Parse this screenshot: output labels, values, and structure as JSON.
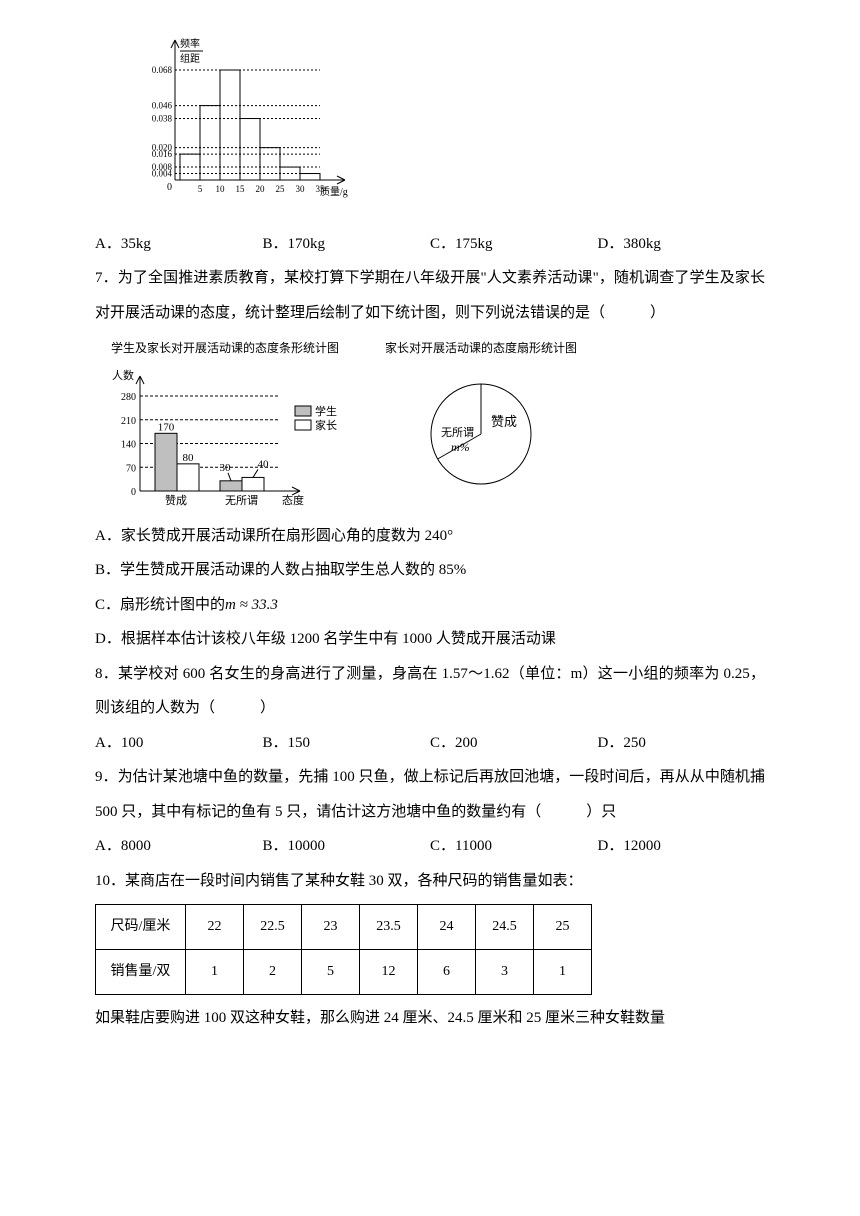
{
  "histogram": {
    "y_label": "频率",
    "y_sublabel": "组距",
    "x_label": "质量/g",
    "y_ticks": [
      "0.004",
      "0.008",
      "0.016",
      "0.020",
      "0.038",
      "0.046",
      "0.068"
    ],
    "y_tick_pos": [
      4,
      8,
      16,
      20,
      38,
      46,
      68
    ],
    "x_ticks": [
      "5",
      "10",
      "15",
      "20",
      "25",
      "30",
      "35"
    ],
    "bars": [
      16,
      46,
      68,
      38,
      20,
      8,
      4
    ],
    "axis_color": "#000000",
    "bar_fill": "#ffffff",
    "bar_stroke": "#000000"
  },
  "q6_options": {
    "a": "A．35kg",
    "b": "B．170kg",
    "c": "C．175kg",
    "d": "D．380kg"
  },
  "q7": {
    "text": "7．为了全国推进素质教育，某校打算下学期在八年级开展\"人文素养活动课\"，随机调查了学生及家长对开展活动课的态度，统计整理后绘制了如下统计图，则下列说法错误的是（　　　）",
    "bar_title": "学生及家长对开展活动课的态度条形统计图",
    "pie_title": "家长对开展活动课的态度扇形统计图",
    "bar": {
      "y_label": "人数",
      "y_ticks": [
        "0",
        "70",
        "140",
        "210",
        "280"
      ],
      "x_label": "态度",
      "categories": [
        "赞成",
        "无所谓"
      ],
      "series": [
        {
          "label": "学生",
          "color": "#bfbfbf",
          "values": [
            170,
            30
          ]
        },
        {
          "label": "家长",
          "color": "#ffffff",
          "values": [
            80,
            40
          ]
        }
      ],
      "bar_labels": [
        "170",
        "80",
        "30",
        "40"
      ]
    },
    "pie": {
      "slices": [
        {
          "label": "赞成",
          "angle": 240
        },
        {
          "label": "无所谓",
          "sublabel": "m%",
          "angle": 120
        }
      ],
      "stroke": "#000000",
      "fill": "#ffffff"
    },
    "opts": {
      "a": "A．家长赞成开展活动课所在扇形圆心角的度数为 240°",
      "b": "B．学生赞成开展活动课的人数占抽取学生总人数的 85%",
      "c": "C．扇形统计图中的",
      "c_math": "m ≈ 33.3",
      "d": "D．根据样本估计该校八年级 1200 名学生中有 1000 人赞成开展活动课"
    }
  },
  "q8": {
    "text": "8．某学校对 600 名女生的身高进行了测量，身高在 1.57～1.62（单位：m）这一小组的频率为 0.25，则该组的人数为（　　　）",
    "opts": {
      "a": "A．100",
      "b": "B．150",
      "c": "C．200",
      "d": "D．250"
    }
  },
  "q9": {
    "text": "9．为估计某池塘中鱼的数量，先捕 100 只鱼，做上标记后再放回池塘，一段时间后，再从从中随机捕 500 只，其中有标记的鱼有 5 只，请估计这方池塘中鱼的数量约有（　　　）只",
    "opts": {
      "a": "A．8000",
      "b": "B．10000",
      "c": "C．11000",
      "d": "D．12000"
    }
  },
  "q10": {
    "text": "10．某商店在一段时间内销售了某种女鞋 30 双，各种尺码的销售量如表：",
    "table": {
      "headers": [
        "尺码/厘米",
        "22",
        "22.5",
        "23",
        "23.5",
        "24",
        "24.5",
        "25"
      ],
      "row": [
        "销售量/双",
        "1",
        "2",
        "5",
        "12",
        "6",
        "3",
        "1"
      ]
    },
    "after": "如果鞋店要购进 100 双这种女鞋，那么购进 24 厘米、24.5 厘米和 25 厘米三种女鞋数量"
  }
}
